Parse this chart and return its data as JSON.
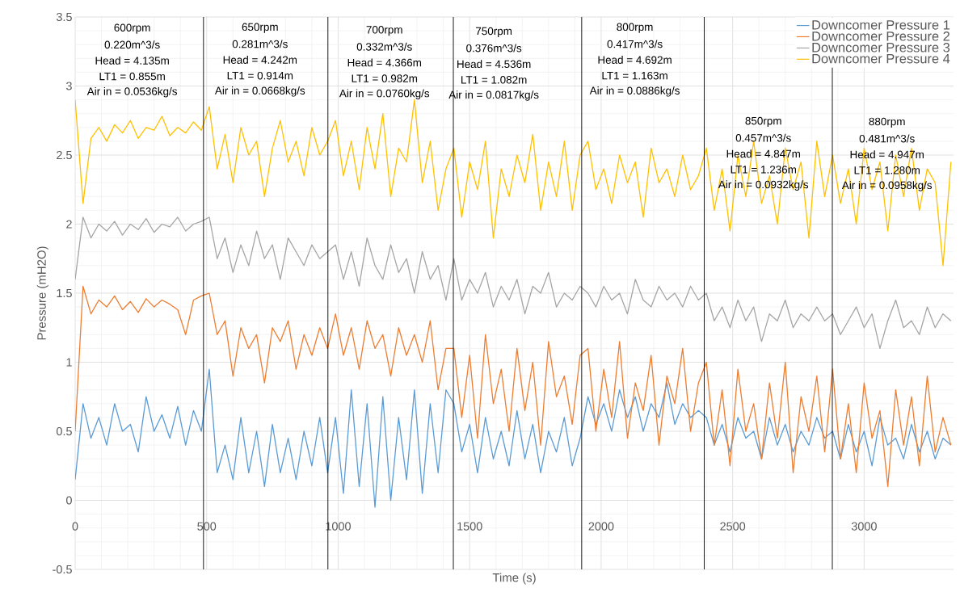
{
  "chart_data": {
    "type": "line",
    "xlabel": "Time (s)",
    "ylabel": "Pressure (mH2O)",
    "xlim": [
      0,
      3340
    ],
    "ylim": [
      -0.5,
      3.5
    ],
    "xticks": [
      0,
      500,
      1000,
      1500,
      2000,
      2500,
      3000
    ],
    "yticks": [
      -0.5,
      0,
      0.5,
      1,
      1.5,
      2,
      2.5,
      3,
      3.5
    ],
    "grid": true,
    "legend": "top right",
    "x": [
      0,
      30,
      60,
      90,
      120,
      150,
      180,
      210,
      240,
      270,
      300,
      330,
      360,
      390,
      420,
      450,
      480,
      510,
      540,
      570,
      600,
      630,
      660,
      690,
      720,
      750,
      780,
      810,
      840,
      870,
      900,
      930,
      960,
      990,
      1020,
      1050,
      1080,
      1110,
      1140,
      1170,
      1200,
      1230,
      1260,
      1290,
      1320,
      1350,
      1380,
      1410,
      1440,
      1470,
      1500,
      1530,
      1560,
      1590,
      1620,
      1650,
      1680,
      1710,
      1740,
      1770,
      1800,
      1830,
      1860,
      1890,
      1920,
      1950,
      1980,
      2010,
      2040,
      2070,
      2100,
      2130,
      2160,
      2190,
      2220,
      2250,
      2280,
      2310,
      2340,
      2370,
      2400,
      2430,
      2460,
      2490,
      2520,
      2550,
      2580,
      2610,
      2640,
      2670,
      2700,
      2730,
      2760,
      2790,
      2820,
      2850,
      2880,
      2910,
      2940,
      2970,
      3000,
      3030,
      3060,
      3090,
      3120,
      3150,
      3180,
      3210,
      3240,
      3270,
      3300,
      3330
    ],
    "series": [
      {
        "name": "Downcomer Pressure 1",
        "color": "#5b9bd5",
        "values": [
          0.15,
          0.7,
          0.45,
          0.6,
          0.4,
          0.7,
          0.5,
          0.55,
          0.35,
          0.75,
          0.5,
          0.62,
          0.45,
          0.68,
          0.4,
          0.65,
          0.5,
          0.95,
          0.2,
          0.4,
          0.15,
          0.6,
          0.2,
          0.5,
          0.1,
          0.55,
          0.2,
          0.45,
          0.15,
          0.5,
          0.25,
          0.6,
          0.2,
          0.6,
          0.05,
          0.8,
          0.1,
          0.7,
          -0.05,
          0.75,
          0.0,
          0.6,
          0.15,
          0.8,
          0.05,
          0.7,
          0.2,
          0.8,
          0.7,
          0.35,
          0.55,
          0.2,
          0.6,
          0.3,
          0.5,
          0.25,
          0.65,
          0.3,
          0.55,
          0.2,
          0.5,
          0.35,
          0.6,
          0.25,
          0.45,
          0.75,
          0.55,
          0.7,
          0.5,
          0.8,
          0.6,
          0.75,
          0.5,
          0.7,
          0.6,
          0.85,
          0.55,
          0.7,
          0.6,
          0.65,
          0.6,
          0.4,
          0.55,
          0.35,
          0.6,
          0.45,
          0.5,
          0.3,
          0.6,
          0.4,
          0.55,
          0.35,
          0.5,
          0.4,
          0.6,
          0.45,
          0.5,
          0.3,
          0.55,
          0.35,
          0.5,
          0.25,
          0.6,
          0.4,
          0.45,
          0.3,
          0.55,
          0.35,
          0.5,
          0.3,
          0.45,
          0.4
        ]
      },
      {
        "name": "Downcomer Pressure 2",
        "color": "#ed7d31",
        "values": [
          0.5,
          1.55,
          1.35,
          1.45,
          1.4,
          1.48,
          1.38,
          1.44,
          1.36,
          1.46,
          1.4,
          1.45,
          1.42,
          1.38,
          1.2,
          1.45,
          1.48,
          1.5,
          1.2,
          1.3,
          0.9,
          1.25,
          1.1,
          1.2,
          0.85,
          1.25,
          1.15,
          1.3,
          0.95,
          1.2,
          1.05,
          1.25,
          1.1,
          1.35,
          1.05,
          1.25,
          0.95,
          1.3,
          1.1,
          1.2,
          0.9,
          1.25,
          1.05,
          1.2,
          1.0,
          1.3,
          0.8,
          1.1,
          1.1,
          0.6,
          1.05,
          0.45,
          1.2,
          0.7,
          0.95,
          0.5,
          1.1,
          0.65,
          1.0,
          0.4,
          1.15,
          0.75,
          0.9,
          0.55,
          1.05,
          1.1,
          0.5,
          0.95,
          0.6,
          1.15,
          0.45,
          0.85,
          0.65,
          1.05,
          0.4,
          0.9,
          0.7,
          1.1,
          0.5,
          0.85,
          1.0,
          0.4,
          0.8,
          0.25,
          0.95,
          0.5,
          0.7,
          0.3,
          0.85,
          0.45,
          1.0,
          0.2,
          0.75,
          0.5,
          0.9,
          0.35,
          0.95,
          0.3,
          0.7,
          0.2,
          0.85,
          0.45,
          0.65,
          0.1,
          0.8,
          0.4,
          0.75,
          0.25,
          0.9,
          0.35,
          0.6,
          0.4
        ]
      },
      {
        "name": "Downcomer Pressure 3",
        "color": "#a5a5a5",
        "values": [
          1.6,
          2.05,
          1.9,
          2.0,
          1.95,
          2.02,
          1.92,
          2.0,
          1.96,
          2.04,
          1.94,
          2.0,
          1.98,
          2.05,
          1.95,
          2.0,
          2.02,
          2.05,
          1.75,
          1.9,
          1.65,
          1.85,
          1.7,
          1.95,
          1.75,
          1.85,
          1.6,
          1.9,
          1.8,
          1.7,
          1.85,
          1.75,
          1.8,
          1.85,
          1.6,
          1.8,
          1.55,
          1.9,
          1.7,
          1.6,
          1.85,
          1.65,
          1.75,
          1.5,
          1.8,
          1.6,
          1.7,
          1.45,
          1.75,
          1.45,
          1.6,
          1.5,
          1.65,
          1.4,
          1.55,
          1.45,
          1.6,
          1.35,
          1.55,
          1.5,
          1.65,
          1.4,
          1.5,
          1.45,
          1.55,
          1.5,
          1.4,
          1.55,
          1.45,
          1.5,
          1.35,
          1.6,
          1.45,
          1.4,
          1.55,
          1.45,
          1.5,
          1.4,
          1.55,
          1.45,
          1.5,
          1.3,
          1.4,
          1.25,
          1.45,
          1.3,
          1.4,
          1.15,
          1.35,
          1.3,
          1.45,
          1.25,
          1.35,
          1.3,
          1.4,
          1.3,
          1.35,
          1.2,
          1.3,
          1.4,
          1.25,
          1.35,
          1.1,
          1.3,
          1.45,
          1.25,
          1.3,
          1.2,
          1.4,
          1.25,
          1.35,
          1.3
        ]
      },
      {
        "name": "Downcomer Pressure 4",
        "color": "#ffc000",
        "values": [
          2.9,
          2.15,
          2.62,
          2.7,
          2.6,
          2.72,
          2.66,
          2.75,
          2.62,
          2.7,
          2.68,
          2.78,
          2.64,
          2.7,
          2.66,
          2.74,
          2.68,
          2.85,
          2.4,
          2.65,
          2.3,
          2.7,
          2.5,
          2.6,
          2.2,
          2.55,
          2.75,
          2.45,
          2.6,
          2.35,
          2.7,
          2.5,
          2.6,
          2.75,
          2.35,
          2.6,
          2.25,
          2.7,
          2.4,
          2.8,
          2.2,
          2.55,
          2.45,
          2.9,
          2.3,
          2.6,
          2.1,
          2.4,
          2.55,
          2.05,
          2.45,
          2.25,
          2.6,
          1.9,
          2.4,
          2.2,
          2.5,
          2.3,
          2.65,
          2.1,
          2.45,
          2.2,
          2.6,
          2.1,
          2.5,
          2.6,
          2.25,
          2.4,
          2.15,
          2.5,
          2.3,
          2.45,
          2.05,
          2.55,
          2.3,
          2.4,
          2.2,
          2.5,
          2.25,
          2.35,
          2.55,
          2.1,
          2.4,
          1.95,
          2.5,
          2.2,
          2.6,
          2.15,
          2.35,
          2.0,
          2.55,
          2.25,
          2.45,
          1.9,
          2.6,
          2.2,
          2.5,
          2.15,
          2.4,
          2.0,
          2.55,
          2.25,
          2.45,
          1.95,
          2.5,
          2.2,
          2.55,
          2.1,
          2.4,
          2.3,
          1.7,
          2.45
        ]
      }
    ],
    "ref_lines": [
      {
        "axis": "x",
        "value": 488,
        "color": "#000000"
      },
      {
        "axis": "x",
        "value": 961,
        "color": "#000000"
      },
      {
        "axis": "x",
        "value": 1438,
        "color": "#000000"
      },
      {
        "axis": "x",
        "value": 1926,
        "color": "#000000"
      },
      {
        "axis": "x",
        "value": 2392,
        "color": "#000000"
      },
      {
        "axis": "x",
        "value": 2879,
        "color": "#000000"
      }
    ],
    "annotations": [
      "600rpm",
      "0.220m^3/s",
      "Head = 4.135m",
      "LT1 = 0.855m",
      "Air in = 0.0536kg/s",
      "650rpm",
      "0.281m^3/s",
      "Head = 4.242m",
      "LT1 = 0.914m",
      "Air in = 0.0668kg/s",
      "700rpm",
      "0.332m^3/s",
      "Head = 4.366m",
      "LT1 = 0.982m",
      "Air in = 0.0760kg/s",
      "750rpm",
      "0.376m^3/s",
      "Head = 4.536m",
      "LT1 = 1.082m",
      "Air in = 0.0817kg/s",
      "800rpm",
      "0.417m^3/s",
      "Head = 4.692m",
      "LT1 = 1.163m",
      "Air in = 0.0886kg/s",
      "850rpm",
      "0.457m^3/s",
      "Head = 4.847m",
      "LT1 = 1.236m",
      "Air in = 0.0932kg/s",
      "880rpm",
      "0.481m^3/s",
      "Head = 4.947m",
      "LT1 = 1.280m",
      "Air in = 0.0958kg/s"
    ]
  }
}
